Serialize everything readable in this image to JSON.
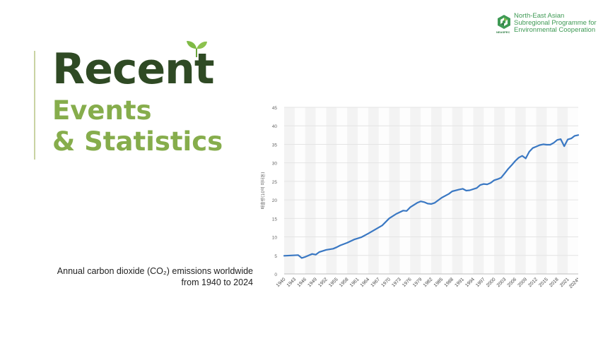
{
  "header": {
    "title_main": "Recent",
    "title_sub1": "Events",
    "title_sub2": "& Statistics"
  },
  "logo": {
    "line1": "North-East Asian",
    "line2": "Subregional Programme for",
    "line3": "Environmental Cooperation",
    "abbr": "NEASPEC"
  },
  "caption": {
    "line1": "Annual carbon dioxide (CO₂) emissions worldwide",
    "line2": "from 1940 to 2024"
  },
  "colors": {
    "title_dark": "#2f4a24",
    "title_light": "#86ad4c",
    "series": "#3a78c3",
    "logo_green": "#3f9a55"
  },
  "chart_data": {
    "type": "line",
    "ylabel": "배출량(10억 미터톤)",
    "ylim": [
      0,
      45
    ],
    "yticks": [
      0,
      5,
      10,
      15,
      20,
      25,
      30,
      35,
      40,
      45
    ],
    "xlim": [
      1940,
      2024
    ],
    "xtick_labels": [
      "1940",
      "1943",
      "1946",
      "1949",
      "1952",
      "1955",
      "1958",
      "1961",
      "1964",
      "1967",
      "1970",
      "1973",
      "1976",
      "1979",
      "1982",
      "1985",
      "1988",
      "1991",
      "1994",
      "1997",
      "2000",
      "2003",
      "2006",
      "2009",
      "2012",
      "2015",
      "2018",
      "2021",
      "2024*"
    ],
    "grid": true,
    "series": [
      {
        "x": [
          1940,
          1942,
          1944,
          1945,
          1946,
          1948,
          1949,
          1950,
          1952,
          1954,
          1955,
          1956,
          1958,
          1960,
          1962,
          1964,
          1966,
          1968,
          1970,
          1972,
          1974,
          1975,
          1976,
          1978,
          1979,
          1980,
          1981,
          1982,
          1983,
          1985,
          1987,
          1988,
          1990,
          1991,
          1992,
          1993,
          1995,
          1996,
          1997,
          1998,
          1999,
          2000,
          2001,
          2002,
          2003,
          2004,
          2005,
          2006,
          2007,
          2008,
          2009,
          2010,
          2011,
          2012,
          2013,
          2014,
          2015,
          2016,
          2017,
          2018,
          2019,
          2020,
          2021,
          2022,
          2023,
          2024
        ],
        "y": [
          4.9,
          5.0,
          5.1,
          4.3,
          4.6,
          5.4,
          5.2,
          5.9,
          6.5,
          6.8,
          7.2,
          7.7,
          8.4,
          9.3,
          9.9,
          10.9,
          12.0,
          13.1,
          15.0,
          16.2,
          17.1,
          17.0,
          18.0,
          19.2,
          19.6,
          19.4,
          19.0,
          18.9,
          19.2,
          20.6,
          21.6,
          22.3,
          22.8,
          23.0,
          22.5,
          22.6,
          23.2,
          24.0,
          24.3,
          24.2,
          24.6,
          25.3,
          25.6,
          26.0,
          27.2,
          28.4,
          29.4,
          30.5,
          31.4,
          31.9,
          31.2,
          33.0,
          34.0,
          34.4,
          34.8,
          35.0,
          34.9,
          34.9,
          35.4,
          36.2,
          36.4,
          34.5,
          36.3,
          36.6,
          37.3,
          37.5
        ]
      }
    ]
  }
}
